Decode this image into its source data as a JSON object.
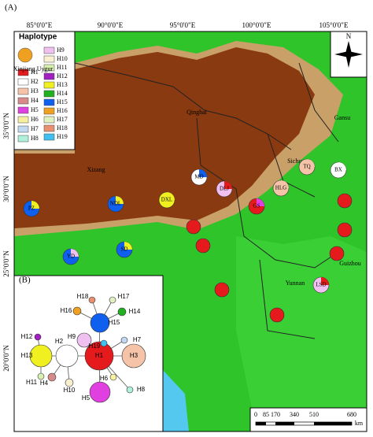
{
  "panel_a": {
    "label": "(A)",
    "lon_labels": [
      "85°0'0\"E",
      "90°0'0\"E",
      "95°0'0\"E",
      "100°0'0\"E",
      "105°0'0\"E"
    ],
    "lat_labels": [
      "35°0'0\"N",
      "30°0'0\"N",
      "25°0'0\"N",
      "20°0'0\"N"
    ],
    "legend": {
      "title": "Haplotype",
      "items": [
        {
          "label": "H1",
          "color": "#e41a1c"
        },
        {
          "label": "H2",
          "color": "#ffffff"
        },
        {
          "label": "H3",
          "color": "#f4c3a8"
        },
        {
          "label": "H4",
          "color": "#d88a8a"
        },
        {
          "label": "H5",
          "color": "#e040e0"
        },
        {
          "label": "H6",
          "color": "#f6f0a0"
        },
        {
          "label": "H7",
          "color": "#c0d8f0"
        },
        {
          "label": "H8",
          "color": "#b0f0d8"
        },
        {
          "label": "H9",
          "color": "#f0c0f0"
        },
        {
          "label": "H10",
          "color": "#f8f0d0"
        },
        {
          "label": "H11",
          "color": "#d8f0b0"
        },
        {
          "label": "H12",
          "color": "#a020c0"
        },
        {
          "label": "H13",
          "color": "#f0f020"
        },
        {
          "label": "H14",
          "color": "#20b020"
        },
        {
          "label": "H15",
          "color": "#1060f0"
        },
        {
          "label": "H16",
          "color": "#f0a020"
        },
        {
          "label": "H17",
          "color": "#e0f0c0"
        },
        {
          "label": "H18",
          "color": "#e89070"
        },
        {
          "label": "H19",
          "color": "#40c0f0"
        }
      ]
    },
    "regions": [
      "Xinjiang Uygur",
      "Qinghai",
      "Gansu",
      "Xizang",
      "Sichuan",
      "Yunnan",
      "Guizhou"
    ],
    "populations": [
      "MD",
      "DLJ",
      "DXL",
      "NDL",
      "PZ",
      "YD",
      "SD",
      "TQ",
      "BX",
      "HLG",
      "GS",
      "LSD"
    ],
    "north": "N",
    "scale": {
      "ticks": [
        "0",
        "85",
        "170",
        "340",
        "510",
        "680"
      ],
      "unit": "km"
    }
  },
  "panel_b": {
    "label": "(B)",
    "nodes": [
      "H1",
      "H2",
      "H3",
      "H4",
      "H5",
      "H6",
      "H7",
      "H8",
      "H9",
      "H10",
      "H11",
      "H12",
      "H13",
      "H14",
      "H15",
      "H16",
      "H17",
      "H18",
      "H19"
    ]
  }
}
